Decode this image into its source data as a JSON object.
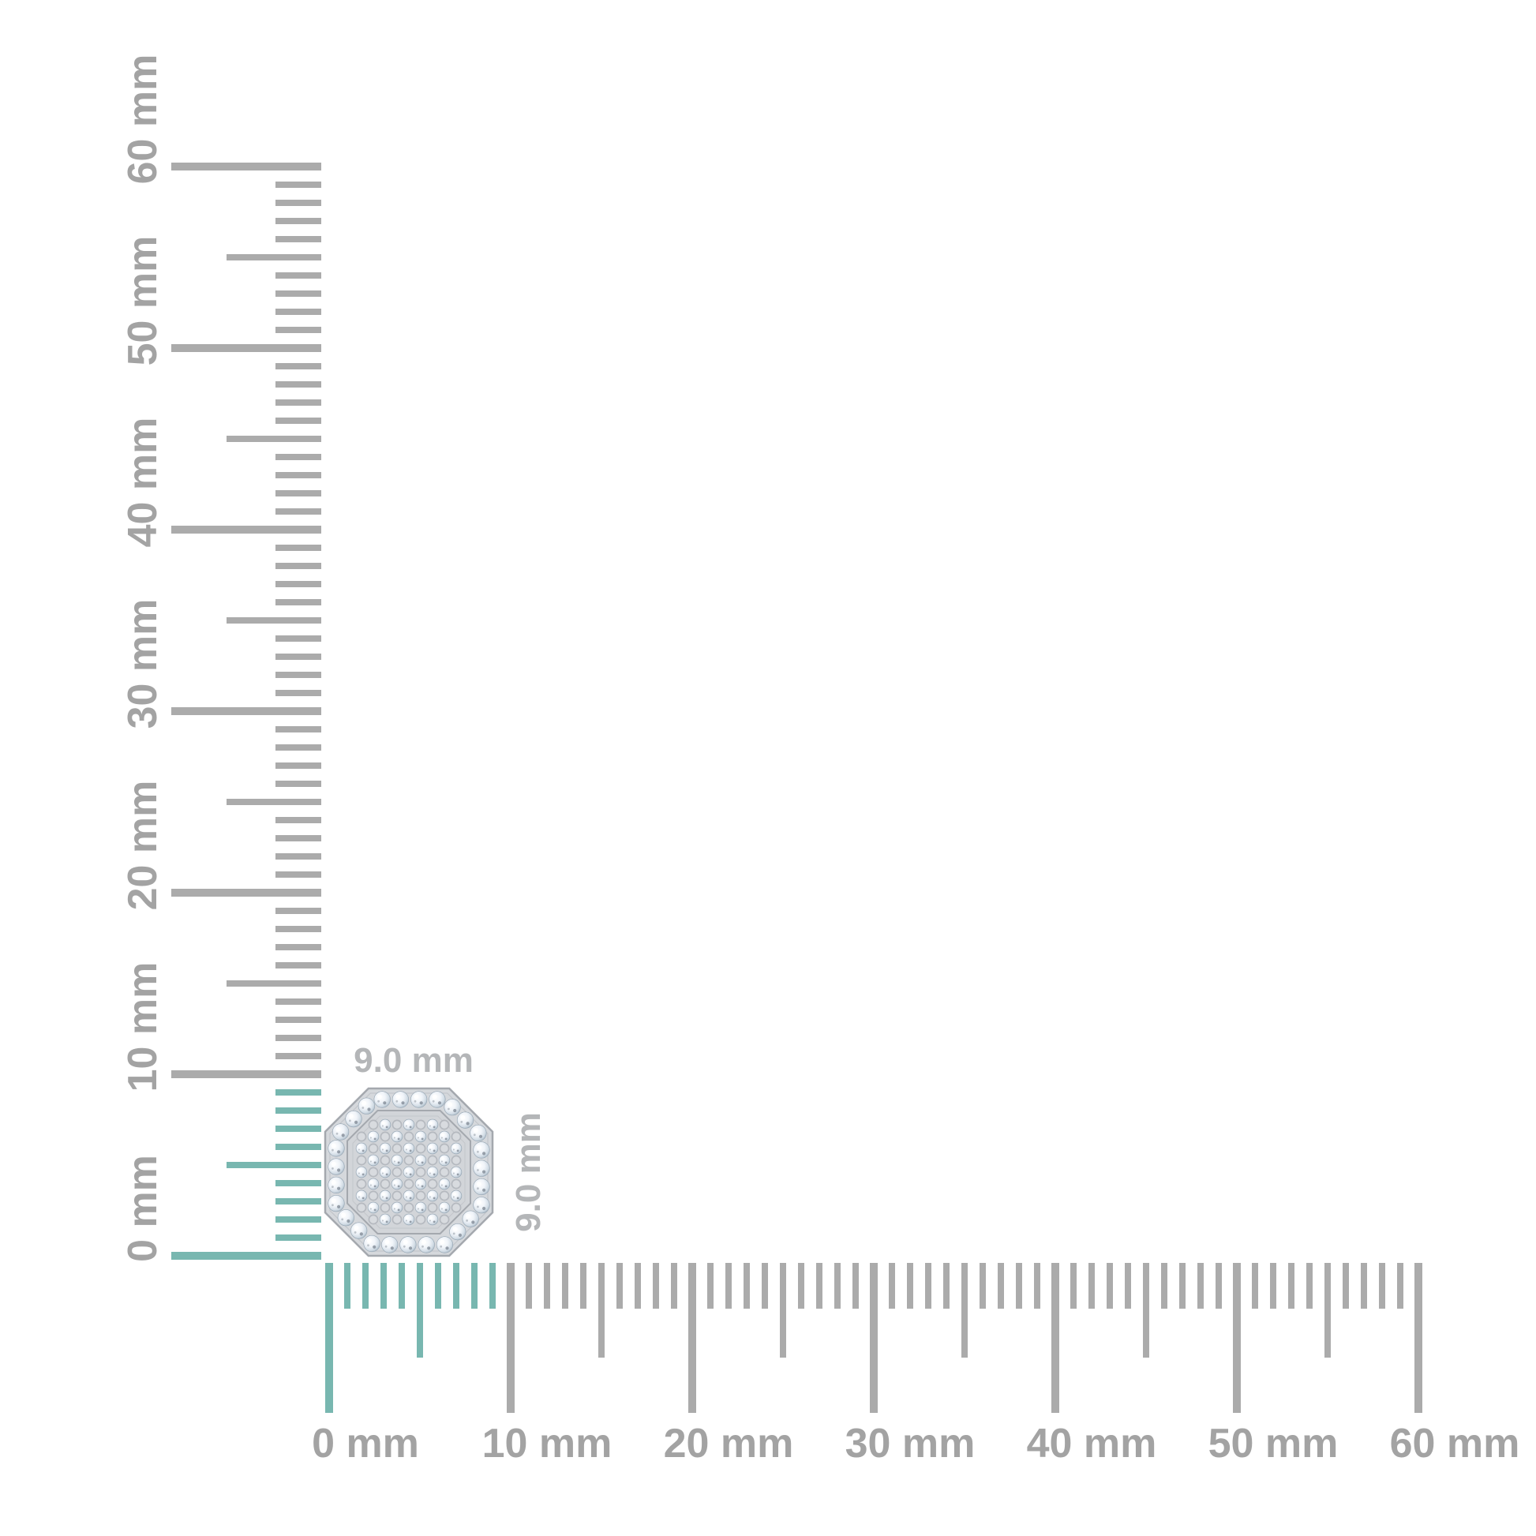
{
  "page": {
    "background_color": "#ffffff"
  },
  "colors": {
    "highlight_teal": "#78b7b0",
    "tick_gray": "#ababab",
    "ruler_label_gray": "#a3a3a3",
    "dimension_label_gray": "#b4b6b8",
    "metal_light": "#d5d8dc",
    "metal_mid": "#d2d5d9",
    "metal_outline": "#a4a8ae",
    "metal_faint_line": "#c3c6cb",
    "bezel_ring_stroke": "#b5b9bf",
    "bezel_ring_fill": "#d8dbdf",
    "stone_edge": "#9fb0be"
  },
  "vertical_ruler": {
    "unit": "mm",
    "min_mm": 0,
    "max_mm": 60,
    "major_step_mm": 10,
    "minor_step_mm": 1,
    "highlighted_extent_mm": 9,
    "labels": [
      "0 mm",
      "10 mm",
      "20 mm",
      "30 mm",
      "40 mm",
      "50 mm",
      "60 mm"
    ]
  },
  "horizontal_ruler": {
    "unit": "mm",
    "min_mm": 0,
    "max_mm": 60,
    "major_step_mm": 10,
    "minor_step_mm": 1,
    "highlighted_extent_mm": 9,
    "labels": [
      "0 mm",
      "10 mm",
      "20 mm",
      "30 mm",
      "40 mm",
      "50 mm",
      "60 mm"
    ]
  },
  "item": {
    "shape": "octagon-pave-cluster-stud",
    "width_label": "9.0 mm",
    "height_label": "9.0 mm"
  }
}
